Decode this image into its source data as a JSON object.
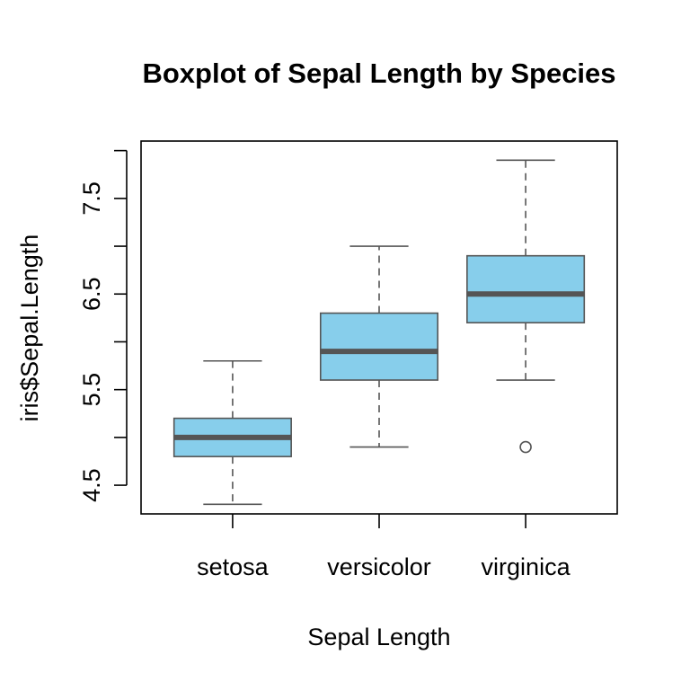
{
  "chart_data": {
    "type": "boxplot",
    "title": "Boxplot of Sepal Length by Species",
    "xlabel": "Sepal Length",
    "ylabel": "iris$Sepal.Length",
    "ylim": [
      4.2,
      8.1
    ],
    "y_ticks": [
      4.5,
      5.0,
      5.5,
      6.0,
      6.5,
      7.0,
      7.5,
      8.0
    ],
    "y_tick_labels": [
      "4.5",
      "",
      "5.5",
      "",
      "6.5",
      "",
      "7.5",
      ""
    ],
    "categories": [
      "setosa",
      "versicolor",
      "virginica"
    ],
    "boxes": [
      {
        "category": "setosa",
        "min": 4.3,
        "q1": 4.8,
        "median": 5.0,
        "q3": 5.2,
        "max": 5.8,
        "outliers": []
      },
      {
        "category": "versicolor",
        "min": 4.9,
        "q1": 5.6,
        "median": 5.9,
        "q3": 6.3,
        "max": 7.0,
        "outliers": []
      },
      {
        "category": "virginica",
        "min": 5.6,
        "q1": 6.2,
        "median": 6.5,
        "q3": 6.9,
        "max": 7.9,
        "outliers": [
          4.9
        ]
      }
    ],
    "colors": {
      "box_fill": "#87CEEB",
      "box_border": "#555555",
      "median": "#555555",
      "axis": "#000000"
    },
    "grid": false
  }
}
